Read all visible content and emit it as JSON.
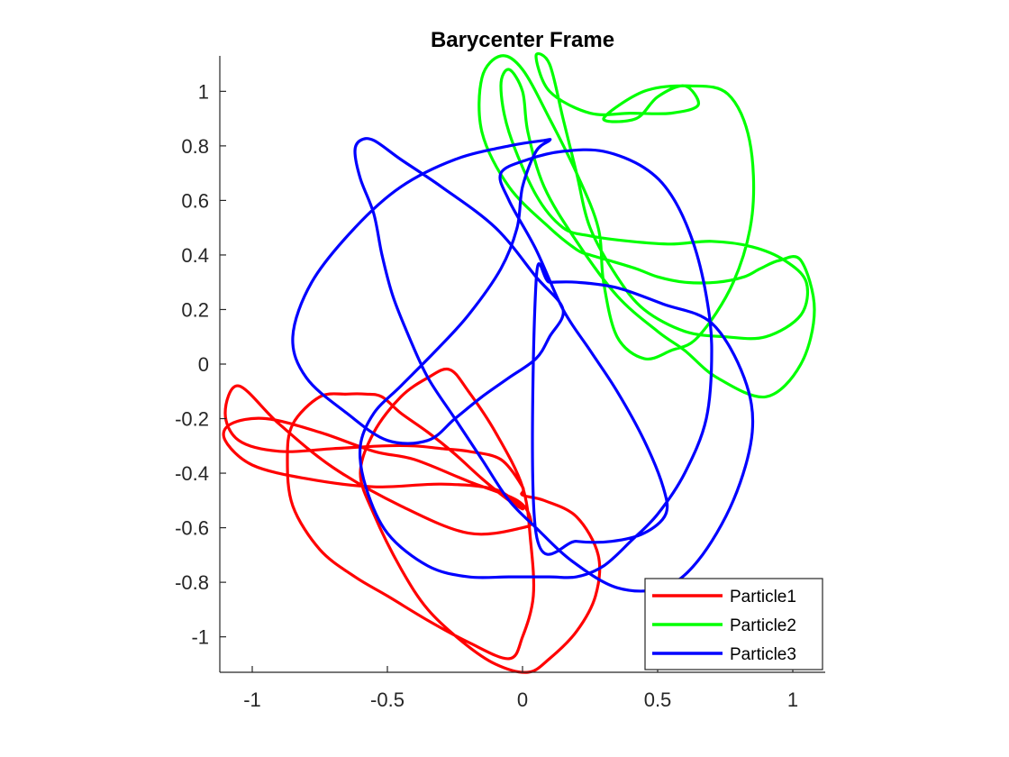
{
  "chart_data": {
    "type": "line",
    "title": "Barycenter Frame",
    "xlabel": "",
    "ylabel": "",
    "xlim": [
      -1.12,
      1.12
    ],
    "ylim": [
      -1.13,
      1.13
    ],
    "x_ticks": [
      -1,
      -0.5,
      0,
      0.5,
      1
    ],
    "x_tick_labels": [
      "-1",
      "-0.5",
      "0",
      "0.5",
      "1"
    ],
    "y_ticks": [
      1,
      0.8,
      0.6,
      0.4,
      0.2,
      0,
      -0.2,
      -0.4,
      -0.6,
      -0.8,
      -1
    ],
    "y_tick_labels": [
      "1",
      "0.8",
      "0.6",
      "0.4",
      "0.2",
      "0",
      "-0.2",
      "-0.4",
      "-0.6",
      "-0.8",
      "-1"
    ],
    "grid": false,
    "legend_position": "bottom-right",
    "series": [
      {
        "name": "Particle1",
        "color": "#ff0000",
        "x": [
          0.0,
          0.08,
          0.2,
          0.28,
          0.27,
          0.2,
          0.1,
          0.02,
          -0.1,
          -0.22,
          -0.35,
          -0.45,
          -0.55,
          -0.6,
          -0.55,
          -0.45,
          -0.35,
          -0.27,
          -0.2,
          -0.1,
          0.0,
          0.03,
          0.04,
          0.0,
          -0.05,
          -0.2,
          -0.35,
          -0.5,
          -0.62,
          -0.75,
          -0.85,
          -0.87,
          -0.85,
          -0.75,
          -0.65,
          -0.58,
          -0.52,
          -0.45,
          -0.35,
          -0.25,
          -0.15,
          -0.05,
          0.0,
          -0.1,
          -0.3,
          -0.55,
          -0.8,
          -1.0,
          -1.1,
          -1.08,
          -0.95,
          -0.75,
          -0.55,
          -0.4,
          -0.2,
          -0.02,
          0.03,
          0.0,
          -0.2,
          -0.45,
          -0.7,
          -0.9,
          -1.05,
          -1.1,
          -1.05,
          -0.9,
          -0.7,
          -0.52,
          -0.4,
          -0.3,
          -0.2,
          -0.08,
          0.0
        ],
        "y": [
          -0.48,
          -0.5,
          -0.56,
          -0.7,
          -0.85,
          -0.98,
          -1.08,
          -1.13,
          -1.1,
          -1.02,
          -0.9,
          -0.75,
          -0.55,
          -0.4,
          -0.25,
          -0.12,
          -0.05,
          -0.02,
          -0.1,
          -0.25,
          -0.45,
          -0.65,
          -0.85,
          -1.0,
          -1.08,
          -1.02,
          -0.94,
          -0.85,
          -0.78,
          -0.68,
          -0.52,
          -0.35,
          -0.22,
          -0.12,
          -0.11,
          -0.11,
          -0.12,
          -0.18,
          -0.25,
          -0.33,
          -0.42,
          -0.5,
          -0.53,
          -0.46,
          -0.44,
          -0.45,
          -0.42,
          -0.37,
          -0.28,
          -0.22,
          -0.2,
          -0.25,
          -0.32,
          -0.35,
          -0.43,
          -0.5,
          -0.57,
          -0.6,
          -0.62,
          -0.52,
          -0.38,
          -0.22,
          -0.08,
          -0.18,
          -0.28,
          -0.32,
          -0.31,
          -0.3,
          -0.3,
          -0.31,
          -0.32,
          -0.35,
          -0.45
        ]
      },
      {
        "name": "Particle2",
        "color": "#00ff00",
        "x": [
          0.3,
          0.45,
          0.62,
          0.76,
          0.84,
          0.85,
          0.78,
          0.65,
          0.55,
          0.45,
          0.35,
          0.3,
          0.28,
          0.2,
          0.1,
          0.0,
          -0.08,
          -0.15,
          -0.15,
          -0.05,
          0.1,
          0.2,
          0.25,
          0.32,
          0.42,
          0.5,
          0.6,
          0.72,
          0.82,
          0.88,
          0.95,
          1.03,
          1.08,
          1.03,
          0.9,
          0.72,
          0.6,
          0.5,
          0.35,
          0.2,
          0.08,
          0.02,
          0.0,
          -0.05,
          -0.08,
          -0.05,
          0.05,
          0.15,
          0.25,
          0.4,
          0.55,
          0.7,
          0.85,
          0.97,
          1.05,
          1.03,
          0.9,
          0.75,
          0.6,
          0.45,
          0.35,
          0.25,
          0.2,
          0.15,
          0.1,
          0.05,
          0.1,
          0.25,
          0.4,
          0.55,
          0.65,
          0.6,
          0.5,
          0.42
        ],
        "y": [
          0.9,
          1.0,
          1.02,
          0.99,
          0.82,
          0.55,
          0.3,
          0.1,
          0.05,
          0.02,
          0.1,
          0.3,
          0.5,
          0.7,
          0.9,
          1.08,
          1.13,
          1.05,
          0.85,
          0.65,
          0.5,
          0.42,
          0.4,
          0.38,
          0.35,
          0.32,
          0.3,
          0.3,
          0.32,
          0.35,
          0.38,
          0.38,
          0.2,
          0.0,
          -0.12,
          -0.05,
          0.05,
          0.12,
          0.25,
          0.45,
          0.65,
          0.85,
          1.0,
          1.08,
          1.02,
          0.85,
          0.62,
          0.5,
          0.47,
          0.45,
          0.44,
          0.45,
          0.43,
          0.38,
          0.3,
          0.18,
          0.1,
          0.1,
          0.12,
          0.2,
          0.32,
          0.5,
          0.7,
          0.9,
          1.1,
          1.13,
          1.0,
          0.92,
          0.92,
          0.92,
          0.95,
          1.02,
          0.98,
          0.9
        ]
      },
      {
        "name": "Particle3",
        "color": "#0000ff",
        "x": [
          0.05,
          0.2,
          0.33,
          0.45,
          0.53,
          0.52,
          0.45,
          0.35,
          0.25,
          0.15,
          0.05,
          -0.05,
          -0.08,
          0.02,
          0.15,
          0.3,
          0.45,
          0.55,
          0.63,
          0.68,
          0.7,
          0.68,
          0.6,
          0.5,
          0.4,
          0.3,
          0.2,
          0.1,
          -0.05,
          -0.2,
          -0.35,
          -0.5,
          -0.58,
          -0.6,
          -0.55,
          -0.45,
          -0.32,
          -0.2,
          -0.08,
          -0.02,
          0.0,
          0.05,
          0.1,
          0.08,
          -0.05,
          -0.25,
          -0.45,
          -0.62,
          -0.78,
          -0.85,
          -0.8,
          -0.65,
          -0.5,
          -0.35,
          -0.25,
          -0.15,
          -0.05,
          0.05,
          0.1,
          0.15,
          0.05,
          -0.1,
          -0.3,
          -0.45,
          -0.55,
          -0.6,
          -0.62,
          -0.6,
          -0.55,
          -0.52,
          -0.48,
          -0.42,
          -0.35,
          -0.25,
          -0.15,
          -0.05,
          0.05,
          0.18,
          0.35,
          0.52,
          0.65,
          0.78,
          0.85,
          0.82,
          0.7,
          0.52,
          0.35,
          0.2,
          0.1,
          0.05
        ],
        "y": [
          -0.62,
          -0.65,
          -0.65,
          -0.62,
          -0.55,
          -0.45,
          -0.28,
          -0.1,
          0.05,
          0.2,
          0.42,
          0.6,
          0.7,
          0.75,
          0.78,
          0.78,
          0.72,
          0.62,
          0.45,
          0.25,
          0.05,
          -0.2,
          -0.4,
          -0.55,
          -0.65,
          -0.74,
          -0.78,
          -0.78,
          -0.78,
          -0.78,
          -0.74,
          -0.62,
          -0.45,
          -0.3,
          -0.18,
          -0.08,
          0.05,
          0.18,
          0.35,
          0.5,
          0.65,
          0.78,
          0.82,
          0.82,
          0.8,
          0.75,
          0.65,
          0.5,
          0.3,
          0.1,
          -0.05,
          -0.18,
          -0.28,
          -0.28,
          -0.2,
          -0.12,
          -0.05,
          0.02,
          0.1,
          0.2,
          0.32,
          0.5,
          0.65,
          0.75,
          0.82,
          0.82,
          0.78,
          0.68,
          0.55,
          0.4,
          0.25,
          0.1,
          -0.05,
          -0.2,
          -0.35,
          -0.5,
          -0.6,
          -0.72,
          -0.82,
          -0.82,
          -0.72,
          -0.5,
          -0.25,
          -0.05,
          0.15,
          0.22,
          0.28,
          0.3,
          0.3,
          0.3
        ]
      }
    ]
  }
}
